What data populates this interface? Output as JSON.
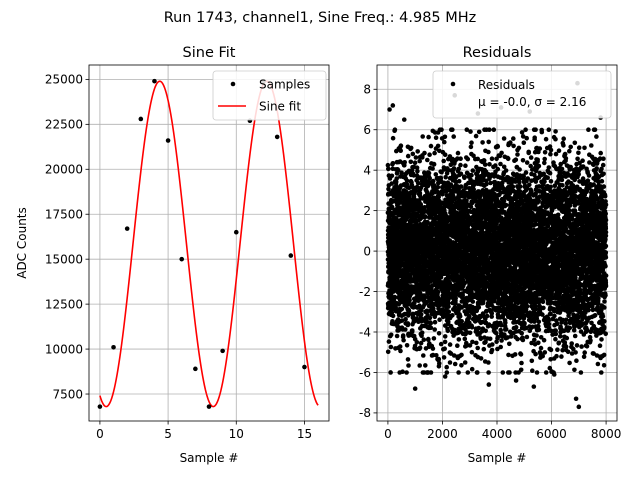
{
  "figure": {
    "suptitle": "Run 1743, channel1, Sine Freq.: 4.985 MHz"
  },
  "chart_data": [
    {
      "type": "scatter",
      "title": "Sine Fit",
      "xlabel": "Sample #",
      "ylabel": "ADC Counts",
      "xlim": [
        -0.8,
        16.8
      ],
      "ylim": [
        6000,
        25800
      ],
      "xticks": [
        0,
        5,
        10,
        15
      ],
      "yticks": [
        7500,
        10000,
        12500,
        15000,
        17500,
        20000,
        22500,
        25000
      ],
      "grid": true,
      "legend_position": "upper-right",
      "series": [
        {
          "name": "Samples",
          "kind": "points",
          "color": "#000000",
          "x": [
            0,
            1,
            2,
            3,
            4,
            5,
            6,
            7,
            8,
            9,
            10,
            11,
            12,
            13,
            14,
            15
          ],
          "y": [
            6800,
            10100,
            16700,
            22800,
            24900,
            21600,
            15000,
            8900,
            6800,
            9900,
            16500,
            22700,
            24900,
            21800,
            15200,
            9000
          ]
        },
        {
          "name": "Sine fit",
          "kind": "line",
          "color": "#ff0000",
          "fit": {
            "offset": 15850,
            "amplitude": 9050,
            "period": 7.85,
            "phase": -1.94,
            "x_start": 0,
            "x_end": 16
          }
        }
      ]
    },
    {
      "type": "scatter",
      "title": "Residuals",
      "xlabel": "Sample #",
      "xlim": [
        -400,
        8400
      ],
      "ylim": [
        -8.4,
        9.2
      ],
      "xticks": [
        0,
        2000,
        4000,
        6000,
        8000
      ],
      "yticks": [
        -8,
        -6,
        -4,
        -2,
        0,
        2,
        4,
        6,
        8
      ],
      "grid": true,
      "legend_position": "upper-right",
      "series": [
        {
          "name": "Residuals",
          "kind": "points",
          "color": "#000000",
          "stats": {
            "mu": "-0.0",
            "sigma": "2.16",
            "n": 8000
          },
          "outliers": [
            {
              "x": 60,
              "y": 7.0
            },
            {
              "x": 180,
              "y": 7.2
            },
            {
              "x": 2450,
              "y": 7.7
            },
            {
              "x": 6950,
              "y": 8.3
            },
            {
              "x": 4150,
              "y": 7.1
            },
            {
              "x": 5200,
              "y": 6.9
            },
            {
              "x": 6900,
              "y": -7.3
            },
            {
              "x": 7000,
              "y": -7.7
            },
            {
              "x": 1000,
              "y": -6.8
            },
            {
              "x": 5350,
              "y": -6.7
            },
            {
              "x": 3700,
              "y": -6.6
            },
            {
              "x": 6100,
              "y": -6.1
            },
            {
              "x": 100,
              "y": -6.0
            },
            {
              "x": 2100,
              "y": -6.2
            },
            {
              "x": 4700,
              "y": -6.4
            },
            {
              "x": 7800,
              "y": 6.6
            },
            {
              "x": 600,
              "y": 6.5
            },
            {
              "x": 3300,
              "y": 6.8
            }
          ]
        }
      ],
      "legend_text": [
        "Residuals",
        "μ = -0.0, σ = 2.16"
      ]
    }
  ]
}
